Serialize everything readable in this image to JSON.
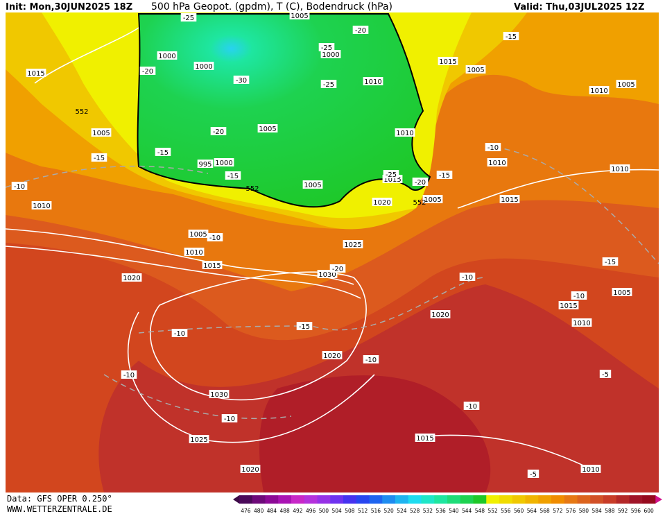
{
  "header": {
    "init": "Init: Mon,30JUN2025 18Z",
    "title": "500 hPa Geopot. (gpdm), T (C), Bodendruck (hPa)",
    "valid": "Valid: Thu,03JUL2025 12Z"
  },
  "footer": {
    "source": "Data: GFS OPER 0.250°",
    "site": "WWW.WETTERZENTRALE.DE"
  },
  "colorbar": {
    "labels": [
      476,
      480,
      484,
      488,
      492,
      496,
      500,
      504,
      508,
      512,
      516,
      520,
      524,
      528,
      532,
      536,
      540,
      544,
      548,
      552,
      556,
      560,
      564,
      568,
      572,
      576,
      580,
      584,
      588,
      592,
      596,
      600
    ],
    "colors": [
      "#4b0a5a",
      "#6e0a7a",
      "#8c0a96",
      "#aa14b4",
      "#c828c8",
      "#b432dc",
      "#9632e6",
      "#6e32f0",
      "#4632f0",
      "#2846f0",
      "#1e64f0",
      "#1e8cf0",
      "#1eb4f0",
      "#1edcf0",
      "#1ee6c8",
      "#1ee6a0",
      "#1edc78",
      "#1ed250",
      "#1ec828",
      "#f0f000",
      "#f0dc00",
      "#f0c800",
      "#f0b400",
      "#f0a000",
      "#f08c00",
      "#e67814",
      "#dc641e",
      "#d25028",
      "#c83c28",
      "#b42828",
      "#a01428",
      "#960a1e"
    ]
  },
  "map": {
    "isobar_labels": [
      "1015",
      "1000",
      "1000",
      "1005",
      "1000",
      "1010",
      "1015",
      "1005",
      "1010",
      "1005",
      "1005",
      "1005",
      "1010",
      "995",
      "1000",
      "1005",
      "1015",
      "1020",
      "1005",
      "1010",
      "1010",
      "1015",
      "1010",
      "1005",
      "1010",
      "1015",
      "1025",
      "1030",
      "1020",
      "1005",
      "1015",
      "1010",
      "1020",
      "1020",
      "1030",
      "1025",
      "1015",
      "1020",
      "1010"
    ],
    "temperature_labels": [
      "-25",
      "-20",
      "-15",
      "-20",
      "-25",
      "-30",
      "-25",
      "-20",
      "-15",
      "-15",
      "-15",
      "-25",
      "-20",
      "-15",
      "-10",
      "-10",
      "-10",
      "-20",
      "-10",
      "-15",
      "-10",
      "-15",
      "-10",
      "-10",
      "-10",
      "-5",
      "-10",
      "-10",
      "-5"
    ],
    "geopotential_labels": [
      "552",
      "552",
      "552"
    ]
  }
}
